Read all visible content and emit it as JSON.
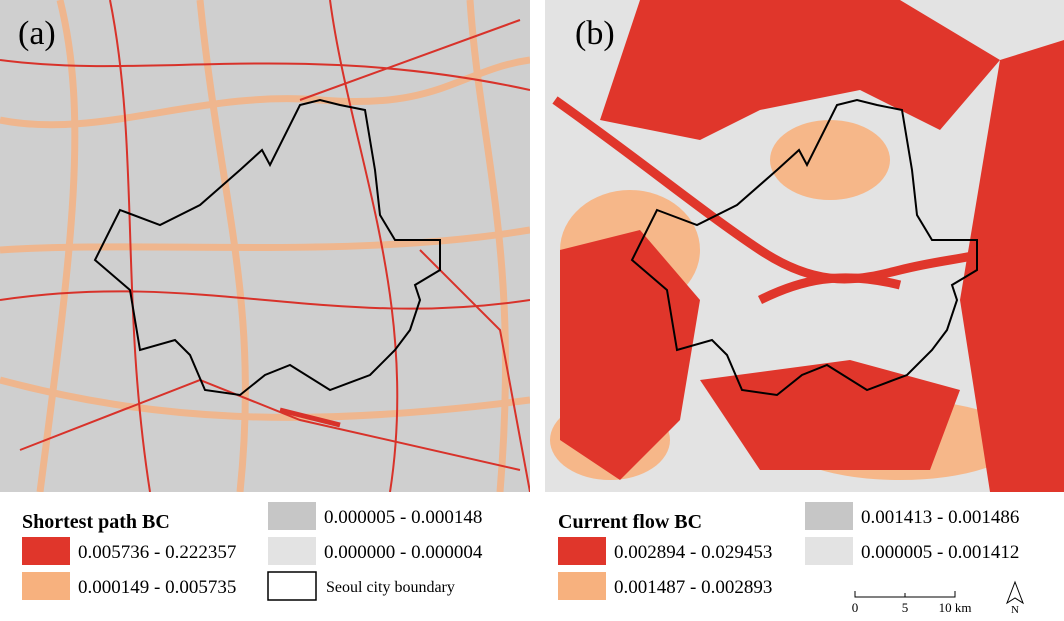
{
  "panels": [
    {
      "label": "(a)",
      "legend": {
        "title": "Shortest path BC",
        "items": [
          {
            "label": "0.005736 - 0.222357",
            "color": "#e0362b"
          },
          {
            "label": "0.000149 - 0.005735",
            "color": "#f7b17e"
          },
          {
            "label": "0.000005 - 0.000148",
            "color": "#c6c6c6"
          },
          {
            "label": "0.000000 - 0.000004",
            "color": "#e3e3e3"
          }
        ]
      }
    },
    {
      "label": "(b)",
      "legend": {
        "title": "Current flow BC",
        "items": [
          {
            "label": "0.002894 - 0.029453",
            "color": "#e0362b"
          },
          {
            "label": "0.001487 - 0.002893",
            "color": "#f7b17e"
          },
          {
            "label": "0.001413 - 0.001486",
            "color": "#c6c6c6"
          },
          {
            "label": "0.000005 - 0.001412",
            "color": "#e3e3e3"
          }
        ]
      }
    }
  ],
  "boundary_label": "Seoul city boundary",
  "scale_bar": [
    "0",
    "5",
    "10 km"
  ],
  "north": "N"
}
